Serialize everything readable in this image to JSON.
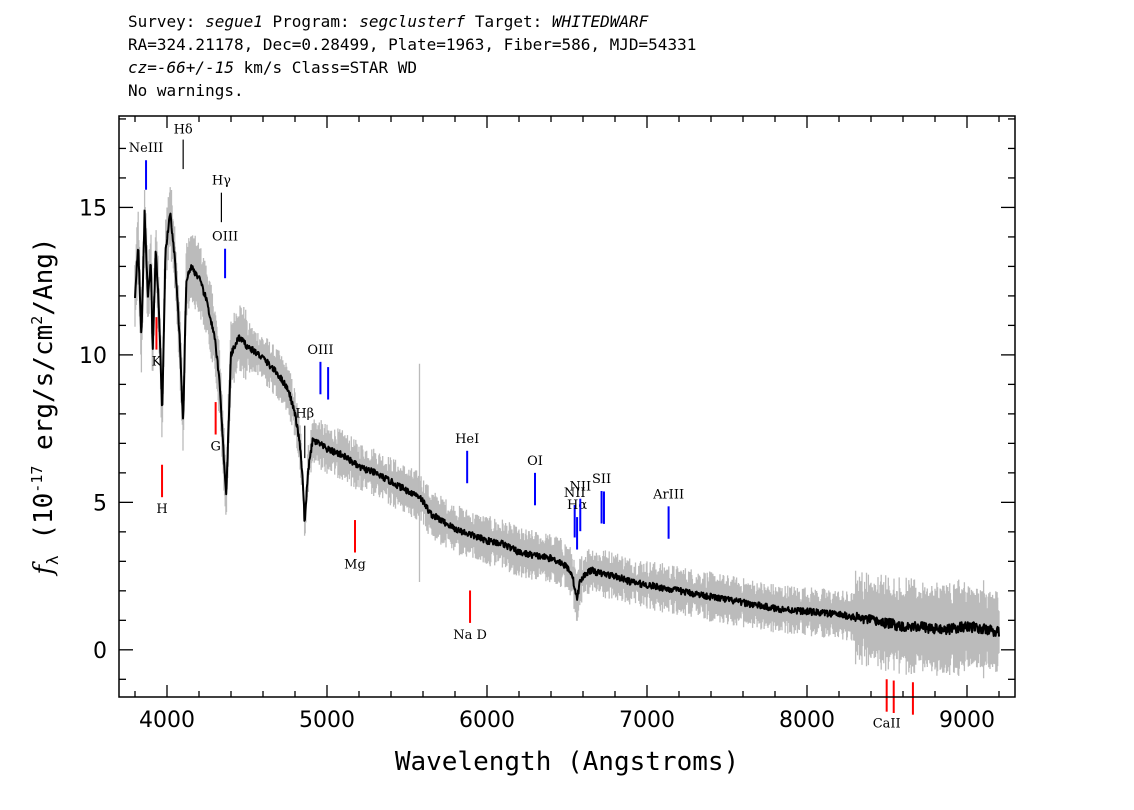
{
  "header": {
    "survey_label": "Survey:",
    "survey": "segue1",
    "program_label": "Program:",
    "program": "segclusterf",
    "target_label": "Target:",
    "target": "WHITEDWARF",
    "line2": "RA=324.21178, Dec=0.28499, Plate=1963, Fiber=586, MJD=54331",
    "cz": "cz=-66+/-15",
    "cz_unit": "km/s",
    "class_text": "Class=STAR WD",
    "warnings": "No warnings."
  },
  "chart_data": {
    "type": "line",
    "xlabel": "Wavelength (Angstroms)",
    "ylabel": "f_λ (10^-17 erg/s/cm^2/Ang)",
    "xlim": [
      3700,
      9300
    ],
    "ylim": [
      -1.6,
      18.1
    ],
    "x_ticks": [
      4000,
      5000,
      6000,
      7000,
      8000,
      9000
    ],
    "y_ticks": [
      0,
      5,
      10,
      15
    ],
    "grid": false,
    "colors": {
      "flux": "#000000",
      "noise": "#bbbbbb",
      "emission": "#0000ff",
      "absorption": "#ff0000",
      "balmer": "#000000"
    },
    "series": [
      {
        "x": [
          3800,
          3820,
          3840,
          3860,
          3880,
          3900,
          3910,
          3930,
          3950,
          3970,
          3990,
          4020,
          4050,
          4080,
          4101,
          4120,
          4150,
          4200,
          4250,
          4300,
          4330,
          4350,
          4370,
          4400,
          4450,
          4500,
          4600,
          4700,
          4760,
          4800,
          4830,
          4850,
          4861,
          4880,
          4910,
          4950,
          5000,
          5100,
          5200,
          5300,
          5400,
          5500,
          5580,
          5650,
          5800,
          5900,
          6000,
          6100,
          6200,
          6300,
          6400,
          6450,
          6500,
          6530,
          6563,
          6580,
          6620,
          6650,
          6700,
          6800,
          6900,
          7000,
          7100,
          7200,
          7400,
          7600,
          7800,
          8000,
          8200,
          8400,
          8500,
          8600,
          8700,
          8800,
          8900,
          9000,
          9100,
          9200
        ],
        "values": [
          12.0,
          13.8,
          10.5,
          14.8,
          12.0,
          13.2,
          10.0,
          13.6,
          11.5,
          8.0,
          13.5,
          14.8,
          13.2,
          10.5,
          7.6,
          12.5,
          13.0,
          12.6,
          11.8,
          10.5,
          9.0,
          7.0,
          5.2,
          10.0,
          10.6,
          10.3,
          9.9,
          9.3,
          8.8,
          8.0,
          7.0,
          5.6,
          4.2,
          6.0,
          7.1,
          7.0,
          6.8,
          6.6,
          6.2,
          6.0,
          5.7,
          5.4,
          5.2,
          4.6,
          4.1,
          3.9,
          3.7,
          3.6,
          3.3,
          3.2,
          3.1,
          3.0,
          2.8,
          2.6,
          1.7,
          2.3,
          2.6,
          2.7,
          2.6,
          2.5,
          2.3,
          2.2,
          2.1,
          2.0,
          1.8,
          1.6,
          1.4,
          1.3,
          1.2,
          1.0,
          0.9,
          0.8,
          0.8,
          0.7,
          0.7,
          0.8,
          0.7,
          0.6
        ]
      }
    ],
    "spectral_lines": [
      {
        "label": "NeIII",
        "wavelength": 3869,
        "type": "emission"
      },
      {
        "label": "Hδ",
        "wavelength": 4101,
        "type": "balmer"
      },
      {
        "label": "Hγ",
        "wavelength": 4340,
        "type": "balmer"
      },
      {
        "label": "OIII",
        "wavelength": 4363,
        "type": "emission"
      },
      {
        "label": "Hβ",
        "wavelength": 4861,
        "type": "balmer"
      },
      {
        "label": "OIII",
        "wavelength": 4959,
        "type": "emission"
      },
      {
        "label": "",
        "wavelength": 5007,
        "type": "emission"
      },
      {
        "label": "HeI",
        "wavelength": 5876,
        "type": "emission"
      },
      {
        "label": "OI",
        "wavelength": 6300,
        "type": "emission"
      },
      {
        "label": "NII",
        "wavelength": 6548,
        "type": "emission"
      },
      {
        "label": "Hα",
        "wavelength": 6563,
        "type": "emission"
      },
      {
        "label": "NII",
        "wavelength": 6583,
        "type": "emission"
      },
      {
        "label": "SII",
        "wavelength": 6716,
        "type": "emission"
      },
      {
        "label": "",
        "wavelength": 6731,
        "type": "emission"
      },
      {
        "label": "ArIII",
        "wavelength": 7135,
        "type": "emission"
      },
      {
        "label": "K",
        "wavelength": 3934,
        "type": "absorption"
      },
      {
        "label": "H",
        "wavelength": 3969,
        "type": "absorption"
      },
      {
        "label": "G",
        "wavelength": 4304,
        "type": "absorption"
      },
      {
        "label": "Mg",
        "wavelength": 5175,
        "type": "absorption"
      },
      {
        "label": "Na D",
        "wavelength": 5894,
        "type": "absorption"
      },
      {
        "label": "CaII",
        "wavelength": 8498,
        "type": "absorption"
      },
      {
        "label": "",
        "wavelength": 8542,
        "type": "absorption"
      },
      {
        "label": "",
        "wavelength": 8662,
        "type": "absorption"
      }
    ]
  }
}
